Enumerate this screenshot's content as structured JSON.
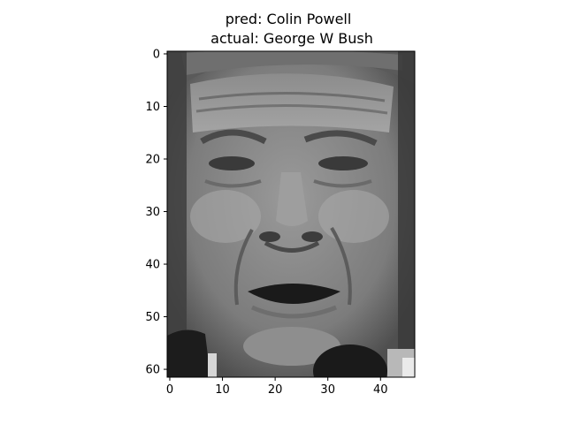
{
  "chart_data": {
    "type": "heatmap",
    "title_lines": [
      "pred: Colin Powell",
      "actual: George W Bush"
    ],
    "colormap": "gray",
    "image_shape": [
      62,
      47
    ],
    "xlim": [
      -0.5,
      46.5
    ],
    "ylim": [
      61.5,
      -0.5
    ],
    "xticks": [
      0,
      10,
      20,
      30,
      40
    ],
    "yticks": [
      0,
      10,
      20,
      30,
      40,
      50,
      60
    ],
    "xtick_labels": [
      "0",
      "10",
      "20",
      "30",
      "40"
    ],
    "ytick_labels": [
      "0",
      "10",
      "20",
      "30",
      "40",
      "50",
      "60"
    ],
    "grid": false
  }
}
